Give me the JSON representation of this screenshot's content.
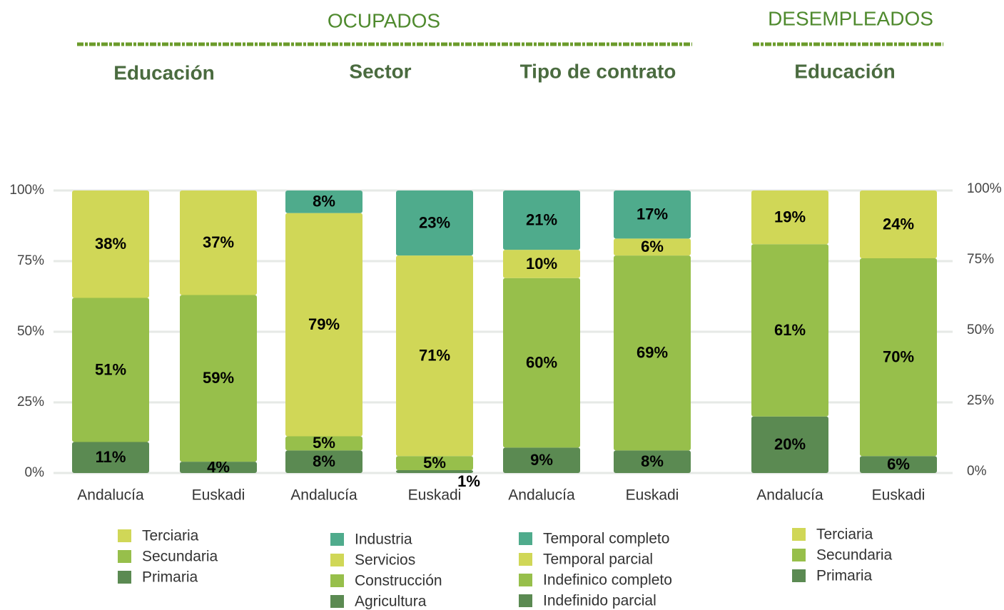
{
  "groups": [
    "OCUPADOS",
    "DESEMPLEADOS"
  ],
  "axis": {
    "ylim": [
      0,
      100
    ],
    "yticks": [
      {
        "value": 0,
        "label": "0%"
      },
      {
        "value": 25,
        "label": "25%"
      },
      {
        "value": 50,
        "label": "50%"
      },
      {
        "value": 75,
        "label": "75%"
      },
      {
        "value": 100,
        "label": "100%"
      }
    ]
  },
  "chart_data": [
    {
      "type": "stacked-bar",
      "title": "Educación",
      "categories": [
        "Andalucía",
        "Euskadi"
      ],
      "series": [
        {
          "name": "Primaria",
          "color": "#5b8a52",
          "values": [
            11,
            4
          ],
          "value_labels": [
            "11%",
            "4%"
          ]
        },
        {
          "name": "Secundaria",
          "color": "#97bf4b",
          "values": [
            51,
            59
          ],
          "value_labels": [
            "51%",
            "59%"
          ]
        },
        {
          "name": "Terciaria",
          "color": "#d0d757",
          "values": [
            38,
            37
          ],
          "value_labels": [
            "38%",
            "37%"
          ]
        }
      ]
    },
    {
      "type": "stacked-bar",
      "title": "Sector",
      "categories": [
        "Andalucía",
        "Euskadi"
      ],
      "series": [
        {
          "name": "Agricultura",
          "color": "#5b8a52",
          "values": [
            8,
            1
          ],
          "value_labels": [
            "8%",
            "1%"
          ]
        },
        {
          "name": "Construcción",
          "color": "#97bf4b",
          "values": [
            5,
            5
          ],
          "value_labels": [
            "5%",
            "5%"
          ]
        },
        {
          "name": "Servicios",
          "color": "#d0d757",
          "values": [
            79,
            71
          ],
          "value_labels": [
            "79%",
            "71%"
          ]
        },
        {
          "name": "Industria",
          "color": "#4fab8c",
          "values": [
            8,
            23
          ],
          "value_labels": [
            "8%",
            "23%"
          ]
        }
      ]
    },
    {
      "type": "stacked-bar",
      "title": "Tipo de contrato",
      "categories": [
        "Andalucía",
        "Euskadi"
      ],
      "series": [
        {
          "name": "Indefinido parcial",
          "color": "#5b8a52",
          "values": [
            9,
            8
          ],
          "value_labels": [
            "9%",
            "8%"
          ]
        },
        {
          "name": "Indefinico completo",
          "color": "#97bf4b",
          "values": [
            60,
            69
          ],
          "value_labels": [
            "60%",
            "69%"
          ]
        },
        {
          "name": "Temporal parcial",
          "color": "#d0d757",
          "values": [
            10,
            6
          ],
          "value_labels": [
            "10%",
            "6%"
          ]
        },
        {
          "name": "Temporal completo",
          "color": "#4fab8c",
          "values": [
            21,
            17
          ],
          "value_labels": [
            "21%",
            "17%"
          ]
        }
      ]
    },
    {
      "type": "stacked-bar",
      "title": "Educación",
      "categories": [
        "Andalucía",
        "Euskadi"
      ],
      "series": [
        {
          "name": "Primaria",
          "color": "#5b8a52",
          "values": [
            20,
            6
          ],
          "value_labels": [
            "20%",
            "6%"
          ]
        },
        {
          "name": "Secundaria",
          "color": "#97bf4b",
          "values": [
            61,
            70
          ],
          "value_labels": [
            "61%",
            "70%"
          ]
        },
        {
          "name": "Terciaria",
          "color": "#d0d757",
          "values": [
            19,
            24
          ],
          "value_labels": [
            "19%",
            "24%"
          ]
        }
      ]
    }
  ]
}
